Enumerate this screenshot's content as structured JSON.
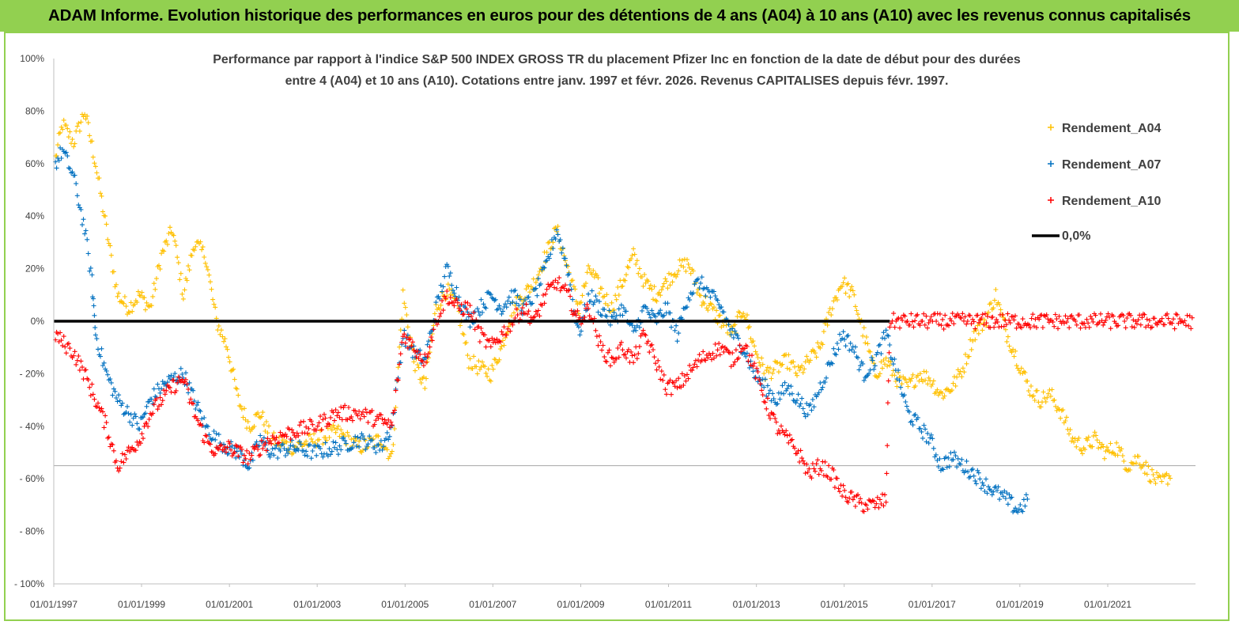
{
  "header": {
    "title": "ADAM Informe. Evolution historique des performances en euros pour des détentions de 4 ans (A04) à 10 ans (A10) avec les revenus connus capitalisés"
  },
  "colors": {
    "banner": "#92d050",
    "A04": "#ffc000",
    "A07": "#0070c0",
    "A10": "#ff0000",
    "zero": "#000000"
  },
  "chart_data": {
    "type": "scatter",
    "title_lines": [
      "Performance par rapport à l'indice S&P 500 INDEX GROSS TR  du placement Pfizer Inc en fonction de la date de début pour des durées",
      "entre 4 (A04) et 10 ans (A10). Cotations entre janv. 1997 et févr. 2026. Revenus CAPITALISES depuis févr. 1997."
    ],
    "y_ticks": [
      "100%",
      "80%",
      "60%",
      "40%",
      "20%",
      "0%",
      "-20%",
      "-40%",
      "-60%",
      "-80%",
      "-100%"
    ],
    "x_ticks": [
      "01/01/1997",
      "01/01/1999",
      "01/01/2001",
      "01/01/2003",
      "01/01/2005",
      "01/01/2007",
      "01/01/2009",
      "01/01/2011",
      "01/01/2013",
      "01/01/2015",
      "01/01/2017",
      "01/01/2019",
      "01/01/2021"
    ],
    "x_range": [
      "1997-01-01",
      "2023-01-01"
    ],
    "ylim": [
      -100,
      100
    ],
    "grid": "horizontal line at -55%",
    "legend_position": "right",
    "legend": [
      "Rendement_A04",
      "Rendement_A07",
      "Rendement_A10",
      "0,0%"
    ],
    "series": [
      {
        "name": "Rendement_A04",
        "points": [
          [
            "1997-01",
            62
          ],
          [
            "1997-03",
            75
          ],
          [
            "1997-06",
            68
          ],
          [
            "1997-09",
            80
          ],
          [
            "1997-12",
            60
          ],
          [
            "1998-03",
            35
          ],
          [
            "1998-06",
            10
          ],
          [
            "1998-09",
            5
          ],
          [
            "1998-12",
            10
          ],
          [
            "1999-03",
            5
          ],
          [
            "1999-06",
            25
          ],
          [
            "1999-09",
            35
          ],
          [
            "1999-12",
            10
          ],
          [
            "2000-03",
            30
          ],
          [
            "2000-06",
            25
          ],
          [
            "2000-09",
            0
          ],
          [
            "2000-12",
            -10
          ],
          [
            "2001-03",
            -30
          ],
          [
            "2001-06",
            -40
          ],
          [
            "2001-09",
            -35
          ],
          [
            "2001-12",
            -45
          ],
          [
            "2002-06",
            -48
          ],
          [
            "2002-12",
            -45
          ],
          [
            "2003-06",
            -42
          ],
          [
            "2003-12",
            -48
          ],
          [
            "2004-06",
            -45
          ],
          [
            "2004-09",
            -52
          ],
          [
            "2004-12",
            10
          ],
          [
            "2005-03",
            -15
          ],
          [
            "2005-06",
            -25
          ],
          [
            "2005-09",
            5
          ],
          [
            "2005-12",
            12
          ],
          [
            "2006-03",
            5
          ],
          [
            "2006-06",
            -15
          ],
          [
            "2006-09",
            -18
          ],
          [
            "2006-12",
            -20
          ],
          [
            "2007-03",
            -10
          ],
          [
            "2007-06",
            5
          ],
          [
            "2007-09",
            10
          ],
          [
            "2007-12",
            15
          ],
          [
            "2008-03",
            25
          ],
          [
            "2008-06",
            35
          ],
          [
            "2008-09",
            20
          ],
          [
            "2008-12",
            5
          ],
          [
            "2009-03",
            20
          ],
          [
            "2009-06",
            12
          ],
          [
            "2009-09",
            5
          ],
          [
            "2009-12",
            15
          ],
          [
            "2010-03",
            25
          ],
          [
            "2010-06",
            15
          ],
          [
            "2010-09",
            10
          ],
          [
            "2010-12",
            15
          ],
          [
            "2011-03",
            20
          ],
          [
            "2011-06",
            22
          ],
          [
            "2011-09",
            10
          ],
          [
            "2011-12",
            5
          ],
          [
            "2012-03",
            0
          ],
          [
            "2012-06",
            -5
          ],
          [
            "2012-09",
            5
          ],
          [
            "2012-12",
            -10
          ],
          [
            "2013-03",
            -20
          ],
          [
            "2013-06",
            -18
          ],
          [
            "2013-09",
            -15
          ],
          [
            "2013-12",
            -20
          ],
          [
            "2014-03",
            -15
          ],
          [
            "2014-06",
            -10
          ],
          [
            "2014-09",
            5
          ],
          [
            "2014-12",
            15
          ],
          [
            "2015-03",
            10
          ],
          [
            "2015-06",
            -5
          ],
          [
            "2015-09",
            -20
          ],
          [
            "2015-12",
            -15
          ],
          [
            "2016-03",
            -22
          ],
          [
            "2016-06",
            -25
          ],
          [
            "2016-09",
            -20
          ],
          [
            "2016-12",
            -22
          ],
          [
            "2017-03",
            -28
          ],
          [
            "2017-06",
            -25
          ],
          [
            "2017-09",
            -18
          ],
          [
            "2017-12",
            -5
          ],
          [
            "2018-03",
            0
          ],
          [
            "2018-06",
            10
          ],
          [
            "2018-09",
            -5
          ],
          [
            "2018-12",
            -15
          ],
          [
            "2019-03",
            -25
          ],
          [
            "2019-06",
            -30
          ],
          [
            "2019-09",
            -28
          ],
          [
            "2019-12",
            -35
          ],
          [
            "2020-03",
            -45
          ],
          [
            "2020-06",
            -48
          ],
          [
            "2020-09",
            -45
          ],
          [
            "2020-12",
            -50
          ],
          [
            "2021-03",
            -48
          ],
          [
            "2021-06",
            -55
          ],
          [
            "2021-09",
            -52
          ],
          [
            "2021-12",
            -58
          ],
          [
            "2022-03",
            -62
          ],
          [
            "2022-06",
            -58
          ]
        ]
      },
      {
        "name": "Rendement_A07",
        "points": [
          [
            "1997-01",
            60
          ],
          [
            "1997-03",
            65
          ],
          [
            "1997-06",
            55
          ],
          [
            "1997-09",
            35
          ],
          [
            "1997-11",
            15
          ],
          [
            "1997-12",
            -5
          ],
          [
            "1998-03",
            -20
          ],
          [
            "1998-06",
            -30
          ],
          [
            "1998-09",
            -35
          ],
          [
            "1998-12",
            -40
          ],
          [
            "1999-03",
            -30
          ],
          [
            "1999-06",
            -25
          ],
          [
            "1999-09",
            -22
          ],
          [
            "1999-12",
            -20
          ],
          [
            "2000-03",
            -30
          ],
          [
            "2000-06",
            -40
          ],
          [
            "2000-09",
            -45
          ],
          [
            "2000-12",
            -48
          ],
          [
            "2001-03",
            -50
          ],
          [
            "2001-06",
            -55
          ],
          [
            "2001-09",
            -45
          ],
          [
            "2001-12",
            -50
          ],
          [
            "2002-06",
            -48
          ],
          [
            "2002-12",
            -50
          ],
          [
            "2003-06",
            -48
          ],
          [
            "2003-12",
            -45
          ],
          [
            "2004-06",
            -48
          ],
          [
            "2004-09",
            -40
          ],
          [
            "2004-12",
            -5
          ],
          [
            "2005-03",
            -12
          ],
          [
            "2005-06",
            -15
          ],
          [
            "2005-09",
            5
          ],
          [
            "2005-12",
            20
          ],
          [
            "2006-03",
            10
          ],
          [
            "2006-06",
            0
          ],
          [
            "2006-09",
            5
          ],
          [
            "2006-12",
            10
          ],
          [
            "2007-03",
            5
          ],
          [
            "2007-06",
            10
          ],
          [
            "2007-09",
            5
          ],
          [
            "2007-12",
            10
          ],
          [
            "2008-03",
            20
          ],
          [
            "2008-06",
            35
          ],
          [
            "2008-09",
            20
          ],
          [
            "2008-12",
            -5
          ],
          [
            "2009-03",
            10
          ],
          [
            "2009-06",
            5
          ],
          [
            "2009-09",
            0
          ],
          [
            "2009-12",
            5
          ],
          [
            "2010-03",
            -5
          ],
          [
            "2010-06",
            5
          ],
          [
            "2010-09",
            0
          ],
          [
            "2010-12",
            5
          ],
          [
            "2011-03",
            -5
          ],
          [
            "2011-06",
            10
          ],
          [
            "2011-09",
            15
          ],
          [
            "2011-12",
            10
          ],
          [
            "2012-03",
            5
          ],
          [
            "2012-06",
            -5
          ],
          [
            "2012-09",
            -10
          ],
          [
            "2012-12",
            -20
          ],
          [
            "2013-03",
            -25
          ],
          [
            "2013-06",
            -30
          ],
          [
            "2013-09",
            -25
          ],
          [
            "2013-12",
            -30
          ],
          [
            "2014-03",
            -35
          ],
          [
            "2014-06",
            -25
          ],
          [
            "2014-09",
            -15
          ],
          [
            "2014-12",
            -5
          ],
          [
            "2015-03",
            -10
          ],
          [
            "2015-06",
            -20
          ],
          [
            "2015-09",
            -15
          ],
          [
            "2015-12",
            -5
          ],
          [
            "2016-03",
            -20
          ],
          [
            "2016-06",
            -35
          ],
          [
            "2016-09",
            -40
          ],
          [
            "2016-12",
            -45
          ],
          [
            "2017-03",
            -55
          ],
          [
            "2017-06",
            -52
          ],
          [
            "2017-09",
            -55
          ],
          [
            "2017-12",
            -58
          ],
          [
            "2018-03",
            -62
          ],
          [
            "2018-06",
            -65
          ],
          [
            "2018-09",
            -68
          ],
          [
            "2018-12",
            -72
          ],
          [
            "2019-03",
            -68
          ]
        ]
      },
      {
        "name": "Rendement_A10",
        "points": [
          [
            "1997-01",
            -5
          ],
          [
            "1997-03",
            -8
          ],
          [
            "1997-06",
            -12
          ],
          [
            "1997-09",
            -20
          ],
          [
            "1997-12",
            -30
          ],
          [
            "1998-03",
            -40
          ],
          [
            "1998-06",
            -55
          ],
          [
            "1998-09",
            -50
          ],
          [
            "1998-12",
            -45
          ],
          [
            "1999-03",
            -35
          ],
          [
            "1999-06",
            -30
          ],
          [
            "1999-09",
            -25
          ],
          [
            "1999-12",
            -22
          ],
          [
            "2000-03",
            -35
          ],
          [
            "2000-06",
            -45
          ],
          [
            "2000-09",
            -50
          ],
          [
            "2000-12",
            -48
          ],
          [
            "2001-03",
            -50
          ],
          [
            "2001-06",
            -52
          ],
          [
            "2001-09",
            -48
          ],
          [
            "2001-12",
            -45
          ],
          [
            "2002-06",
            -42
          ],
          [
            "2002-12",
            -40
          ],
          [
            "2003-06",
            -35
          ],
          [
            "2003-12",
            -35
          ],
          [
            "2004-06",
            -38
          ],
          [
            "2004-09",
            -40
          ],
          [
            "2004-12",
            -5
          ],
          [
            "2005-03",
            -10
          ],
          [
            "2005-06",
            -15
          ],
          [
            "2005-09",
            0
          ],
          [
            "2005-12",
            10
          ],
          [
            "2006-03",
            5
          ],
          [
            "2006-06",
            5
          ],
          [
            "2006-09",
            -5
          ],
          [
            "2006-12",
            -10
          ],
          [
            "2007-03",
            -5
          ],
          [
            "2007-06",
            0
          ],
          [
            "2007-09",
            5
          ],
          [
            "2007-12",
            0
          ],
          [
            "2008-03",
            10
          ],
          [
            "2008-06",
            15
          ],
          [
            "2008-09",
            10
          ],
          [
            "2008-12",
            0
          ],
          [
            "2009-03",
            5
          ],
          [
            "2009-06",
            -10
          ],
          [
            "2009-09",
            -15
          ],
          [
            "2009-12",
            -10
          ],
          [
            "2010-03",
            -15
          ],
          [
            "2010-06",
            -5
          ],
          [
            "2010-09",
            -15
          ],
          [
            "2010-12",
            -25
          ],
          [
            "2011-03",
            -25
          ],
          [
            "2011-06",
            -20
          ],
          [
            "2011-09",
            -15
          ],
          [
            "2011-12",
            -12
          ],
          [
            "2012-03",
            -10
          ],
          [
            "2012-06",
            -15
          ],
          [
            "2012-09",
            -8
          ],
          [
            "2012-12",
            -18
          ],
          [
            "2013-03",
            -30
          ],
          [
            "2013-06",
            -40
          ],
          [
            "2013-09",
            -45
          ],
          [
            "2013-12",
            -50
          ],
          [
            "2014-03",
            -58
          ],
          [
            "2014-06",
            -55
          ],
          [
            "2014-09",
            -58
          ],
          [
            "2014-12",
            -65
          ],
          [
            "2015-03",
            -68
          ],
          [
            "2015-06",
            -70
          ],
          [
            "2015-09",
            -70
          ],
          [
            "2015-12",
            -68
          ],
          [
            "2016-01",
            0
          ],
          [
            "2017-01",
            0
          ],
          [
            "2018-01",
            0
          ],
          [
            "2019-01",
            0
          ],
          [
            "2020-01",
            0
          ],
          [
            "2021-01",
            0
          ],
          [
            "2022-01",
            0
          ],
          [
            "2022-12",
            0
          ]
        ]
      }
    ]
  }
}
